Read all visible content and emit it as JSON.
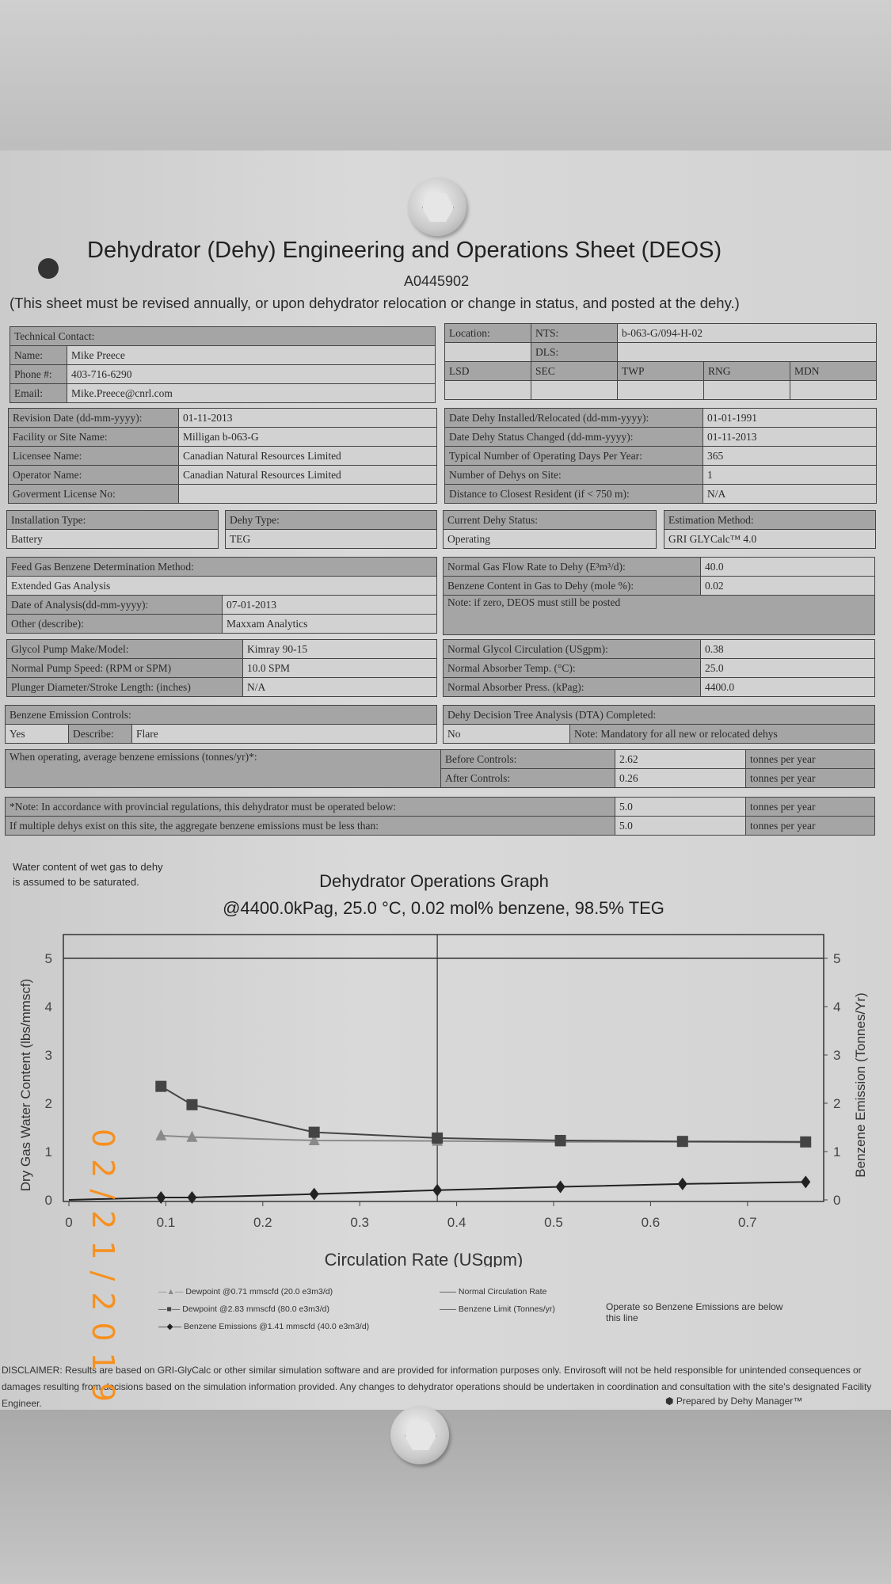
{
  "header": {
    "title": "Dehydrator (Dehy) Engineering and Operations Sheet (DEOS)",
    "doc_id": "A0445902",
    "notice": "(This sheet must be revised annually, or upon dehydrator relocation or change in status, and posted at the dehy.)"
  },
  "contact": {
    "heading": "Technical Contact:",
    "rows": [
      {
        "label": "Name:",
        "value": "Mike Preece"
      },
      {
        "label": "Phone #:",
        "value": "403-716-6290"
      },
      {
        "label": "Email:",
        "value": "Mike.Preece@cnrl.com"
      }
    ]
  },
  "location": {
    "label": "Location:",
    "nts_label": "NTS:",
    "nts": "b-063-G/094-H-02",
    "dls_label": "DLS:",
    "cols": [
      "LSD",
      "SEC",
      "TWP",
      "RNG",
      "MDN"
    ]
  },
  "facility": [
    {
      "label": "Revision Date (dd-mm-yyyy):",
      "value": "01-11-2013"
    },
    {
      "label": "Facility or Site Name:",
      "value": "Milligan b-063-G"
    },
    {
      "label": "Licensee Name:",
      "value": "Canadian Natural Resources Limited"
    },
    {
      "label": "Operator Name:",
      "value": "Canadian Natural Resources Limited"
    },
    {
      "label": "Goverment License No:",
      "value": ""
    }
  ],
  "dates": [
    {
      "label": "Date Dehy Installed/Relocated (dd-mm-yyyy):",
      "value": "01-01-1991"
    },
    {
      "label": "Date Dehy Status Changed (dd-mm-yyyy):",
      "value": "01-11-2013"
    },
    {
      "label": "Typical Number of Operating Days Per Year:",
      "value": "365"
    },
    {
      "label": "Number of Dehys on Site:",
      "value": "1"
    },
    {
      "label": "Distance to Closest Resident (if < 750 m):",
      "value": "N/A"
    }
  ],
  "install": {
    "type_label": "Installation Type:",
    "type": "Battery",
    "dehy_label": "Dehy Type:",
    "dehy": "TEG"
  },
  "status": {
    "status_label": "Current Dehy Status:",
    "status": "Operating",
    "method_label": "Estimation Method:",
    "method": "GRI GLYCalc™ 4.0"
  },
  "feed": {
    "heading": "Feed Gas Benzene Determination Method:",
    "method": "Extended Gas Analysis",
    "rows": [
      {
        "label": "Date of Analysis(dd-mm-yyyy):",
        "value": "07-01-2013"
      },
      {
        "label": "Other (describe):",
        "value": "Maxxam Analytics"
      }
    ]
  },
  "gas": {
    "rows": [
      {
        "label": "Normal Gas Flow Rate to Dehy (E³m³/d):",
        "value": "40.0"
      },
      {
        "label": "Benzene Content in Gas to Dehy (mole %):",
        "value": "0.02"
      }
    ],
    "note": "Note: if zero, DEOS must still be posted"
  },
  "pump": [
    {
      "label": "Glycol Pump Make/Model:",
      "value": "Kimray 90-15"
    },
    {
      "label": "Normal Pump Speed: (RPM or SPM)",
      "value": "10.0 SPM"
    },
    {
      "label": "Plunger Diameter/Stroke Length: (inches)",
      "value": "N/A"
    }
  ],
  "absorber": [
    {
      "label": "Normal Glycol Circulation (USgpm):",
      "value": "0.38"
    },
    {
      "label": "Normal Absorber Temp. (°C):",
      "value": "25.0"
    },
    {
      "label": "Normal Absorber Press. (kPag):",
      "value": "4400.0"
    }
  ],
  "controls": {
    "heading": "Benzene Emission Controls:",
    "value": "Yes",
    "describe_label": "Describe:",
    "describe": "Flare"
  },
  "dta": {
    "heading": "Dehy Decision Tree Analysis (DTA) Completed:",
    "value": "No",
    "note": "Note: Mandatory for all new or relocated dehys"
  },
  "emissions": {
    "label": "When operating, average benzene emissions (tonnes/yr)*:",
    "before_label": "Before Controls:",
    "before": "2.62",
    "after_label": "After Controls:",
    "after": "0.26",
    "unit": "tonnes per year"
  },
  "limits": [
    {
      "label": "*Note: In accordance with provincial regulations, this dehydrator must be operated below:",
      "value": "5.0",
      "unit": "tonnes per year"
    },
    {
      "label": "If multiple dehys exist on this site, the aggregate benzene emissions must be less than:",
      "value": "5.0",
      "unit": "tonnes per year"
    }
  ],
  "graph_note": "Water content of wet gas to dehy is assumed to be saturated.",
  "chart_data": {
    "type": "line",
    "title": "Dehydrator Operations Graph",
    "subtitle": "@4400.0kPag, 25.0 °C, 0.02 mol% benzene, 98.5% TEG",
    "xlabel": "Circulation Rate (USgpm)",
    "ylabel": "Dry Gas Water Content  (lbs/mmscf)",
    "y2label": "Benzene Emission  (Tonnes/Yr)",
    "xlim": [
      0,
      0.78
    ],
    "ylim": [
      0,
      5.5
    ],
    "y2lim": [
      0,
      5.5
    ],
    "xticks": [
      "0",
      "0.1",
      "0.2",
      "0.3",
      "0.4",
      "0.5",
      "0.6",
      "0.7"
    ],
    "yticks": [
      "0",
      "1",
      "2",
      "3",
      "4",
      "5"
    ],
    "x": [
      0.095,
      0.127,
      0.253,
      0.38,
      0.507,
      0.633,
      0.76
    ],
    "series": [
      {
        "name": "Dewpoint @0.71 mmscfd (20.0 e3m3/d)",
        "marker": "triangle",
        "color": "#8a8a8a",
        "values": [
          1.33,
          1.3,
          1.23,
          1.22,
          1.2,
          1.2,
          1.19
        ]
      },
      {
        "name": "Dewpoint @2.83 mmscfd (80.0 e3m3/d)",
        "marker": "square",
        "color": "#444444",
        "values": [
          2.35,
          1.97,
          1.4,
          1.28,
          1.23,
          1.21,
          1.2
        ]
      },
      {
        "name": "Benzene Emissions @1.41 mmscfd (40.0 e3m3/d)",
        "marker": "diamond",
        "color": "#222222",
        "axis": "right",
        "values": [
          0.05,
          0.05,
          0.12,
          0.2,
          0.27,
          0.33,
          0.37
        ]
      }
    ],
    "normal_circulation": {
      "name": "Normal Circulation Rate",
      "x": 0.38
    },
    "benzene_limit": {
      "name": "Benzene Limit (Tonnes/yr)",
      "y": 5,
      "note": "Operate so Benzene Emissions are below this line"
    }
  },
  "disclaimer": "DISCLAIMER: Results are based on GRI-GlyCalc or other similar simulation software and are provided for information purposes only. Envirosoft will not be held responsible for unintended consequences or damages resulting from decisions based on the simulation information provided. Any changes to dehydrator operations should be undertaken in coordination and consultation with the site's designated Facility Engineer.",
  "prepared_by": "Prepared by Dehy Manager™",
  "date_stamp": "02/21/2019"
}
